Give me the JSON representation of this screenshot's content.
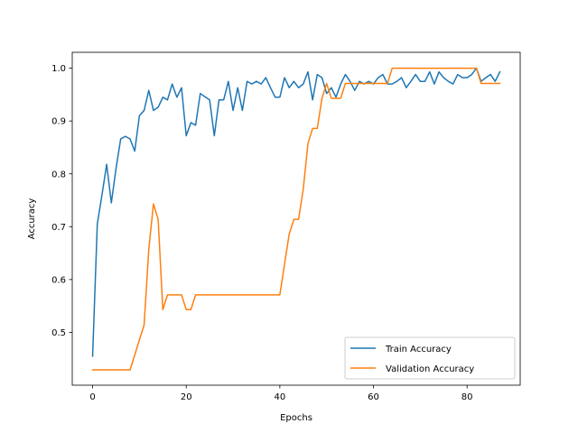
{
  "chart_data": {
    "type": "line",
    "xlabel": "Epochs",
    "ylabel": "Accuracy",
    "xlim": [
      -4.35,
      91.35
    ],
    "ylim": [
      0.4,
      1.03
    ],
    "xticks": [
      0,
      20,
      40,
      60,
      80
    ],
    "yticks": [
      0.5,
      0.6,
      0.7,
      0.8,
      0.9,
      1.0
    ],
    "ytick_labels": [
      "0.5",
      "0.6",
      "0.7",
      "0.8",
      "0.9",
      "1.0"
    ],
    "grid": false,
    "legend_position": "lower-right",
    "series": [
      {
        "name": "Train Accuracy",
        "color": "#1f77b4",
        "x": [
          0,
          1,
          2,
          3,
          4,
          5,
          6,
          7,
          8,
          9,
          10,
          11,
          12,
          13,
          14,
          15,
          16,
          17,
          18,
          19,
          20,
          21,
          22,
          23,
          24,
          25,
          26,
          27,
          28,
          29,
          30,
          31,
          32,
          33,
          34,
          35,
          36,
          37,
          38,
          39,
          40,
          41,
          42,
          43,
          44,
          45,
          46,
          47,
          48,
          49,
          50,
          51,
          52,
          53,
          54,
          55,
          56,
          57,
          58,
          59,
          60,
          61,
          62,
          63,
          64,
          65,
          66,
          67,
          68,
          69,
          70,
          71,
          72,
          73,
          74,
          75,
          76,
          77,
          78,
          79,
          80,
          81,
          82,
          83,
          84,
          85,
          86,
          87
        ],
        "y": [
          0.455,
          0.705,
          0.76,
          0.818,
          0.745,
          0.81,
          0.866,
          0.871,
          0.866,
          0.843,
          0.91,
          0.92,
          0.958,
          0.92,
          0.926,
          0.945,
          0.94,
          0.97,
          0.945,
          0.963,
          0.872,
          0.897,
          0.892,
          0.952,
          0.946,
          0.94,
          0.872,
          0.94,
          0.94,
          0.975,
          0.92,
          0.963,
          0.92,
          0.975,
          0.97,
          0.975,
          0.97,
          0.982,
          0.963,
          0.945,
          0.945,
          0.982,
          0.963,
          0.975,
          0.963,
          0.97,
          0.993,
          0.94,
          0.988,
          0.982,
          0.952,
          0.963,
          0.945,
          0.97,
          0.988,
          0.975,
          0.958,
          0.975,
          0.97,
          0.975,
          0.97,
          0.982,
          0.988,
          0.97,
          0.97,
          0.975,
          0.982,
          0.963,
          0.975,
          0.988,
          0.975,
          0.975,
          0.993,
          0.97,
          0.993,
          0.982,
          0.975,
          0.97,
          0.988,
          0.982,
          0.982,
          0.988,
          1.0,
          0.975,
          0.982,
          0.988,
          0.975,
          0.993
        ]
      },
      {
        "name": "Validation Accuracy",
        "color": "#ff7f0e",
        "x": [
          0,
          1,
          2,
          3,
          4,
          5,
          6,
          7,
          8,
          9,
          10,
          11,
          12,
          13,
          14,
          15,
          16,
          17,
          18,
          19,
          20,
          21,
          22,
          23,
          24,
          25,
          26,
          27,
          28,
          29,
          30,
          31,
          32,
          33,
          34,
          35,
          36,
          37,
          38,
          39,
          40,
          41,
          42,
          43,
          44,
          45,
          46,
          47,
          48,
          49,
          50,
          51,
          52,
          53,
          54,
          55,
          56,
          57,
          58,
          59,
          60,
          61,
          62,
          63,
          64,
          65,
          66,
          67,
          68,
          69,
          70,
          71,
          72,
          73,
          74,
          75,
          76,
          77,
          78,
          79,
          80,
          81,
          82,
          83,
          84,
          85,
          86,
          87
        ],
        "y": [
          0.429,
          0.429,
          0.429,
          0.429,
          0.429,
          0.429,
          0.429,
          0.429,
          0.429,
          0.457,
          0.486,
          0.514,
          0.657,
          0.743,
          0.714,
          0.543,
          0.571,
          0.571,
          0.571,
          0.571,
          0.543,
          0.543,
          0.571,
          0.571,
          0.571,
          0.571,
          0.571,
          0.571,
          0.571,
          0.571,
          0.571,
          0.571,
          0.571,
          0.571,
          0.571,
          0.571,
          0.571,
          0.571,
          0.571,
          0.571,
          0.571,
          0.629,
          0.686,
          0.714,
          0.714,
          0.771,
          0.857,
          0.886,
          0.886,
          0.943,
          0.971,
          0.943,
          0.943,
          0.943,
          0.971,
          0.971,
          0.971,
          0.971,
          0.971,
          0.971,
          0.971,
          0.971,
          0.971,
          0.971,
          1.0,
          1.0,
          1.0,
          1.0,
          1.0,
          1.0,
          1.0,
          1.0,
          1.0,
          1.0,
          1.0,
          1.0,
          1.0,
          1.0,
          1.0,
          1.0,
          1.0,
          1.0,
          1.0,
          0.971,
          0.971,
          0.971,
          0.971,
          0.971
        ]
      }
    ]
  }
}
